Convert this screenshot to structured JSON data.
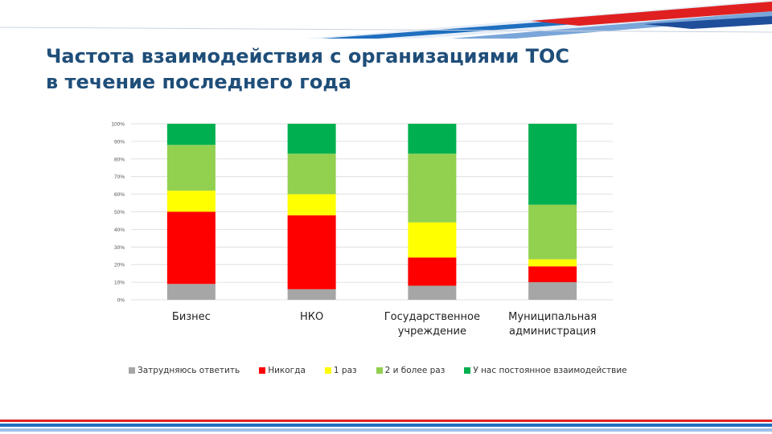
{
  "title_lines": [
    "Частота взаимодействия с организациями ТОС",
    "в течение последнего года"
  ],
  "chart_data": {
    "type": "bar",
    "stacked": true,
    "categories": [
      [
        "Бизнес"
      ],
      [
        "НКО"
      ],
      [
        "Государственное",
        "учреждение"
      ],
      [
        "Муниципальная",
        "администрация"
      ]
    ],
    "series": [
      {
        "name": "Затрудняюсь ответить",
        "color": "#a6a6a6",
        "values": [
          9,
          6,
          8,
          10
        ]
      },
      {
        "name": "Никогда",
        "color": "#ff0000",
        "values": [
          41,
          42,
          16,
          9
        ]
      },
      {
        "name": "1 раз",
        "color": "#ffff00",
        "values": [
          12,
          12,
          20,
          4
        ]
      },
      {
        "name": "2 и более раз",
        "color": "#92d050",
        "values": [
          26,
          23,
          39,
          31
        ]
      },
      {
        "name": "У нас постоянное взаимодействие",
        "color": "#00b050",
        "values": [
          12,
          17,
          17,
          46
        ]
      }
    ],
    "y_ticks": [
      "0%",
      "10%",
      "20%",
      "30%",
      "40%",
      "50%",
      "60%",
      "70%",
      "80%",
      "90%",
      "100%"
    ],
    "ylim": [
      0,
      100
    ],
    "grid": true,
    "legend_position": "bottom"
  },
  "colors": {
    "title": "#1f4e79",
    "deco_blue": "#1f6fc0",
    "deco_red": "#e02020"
  }
}
